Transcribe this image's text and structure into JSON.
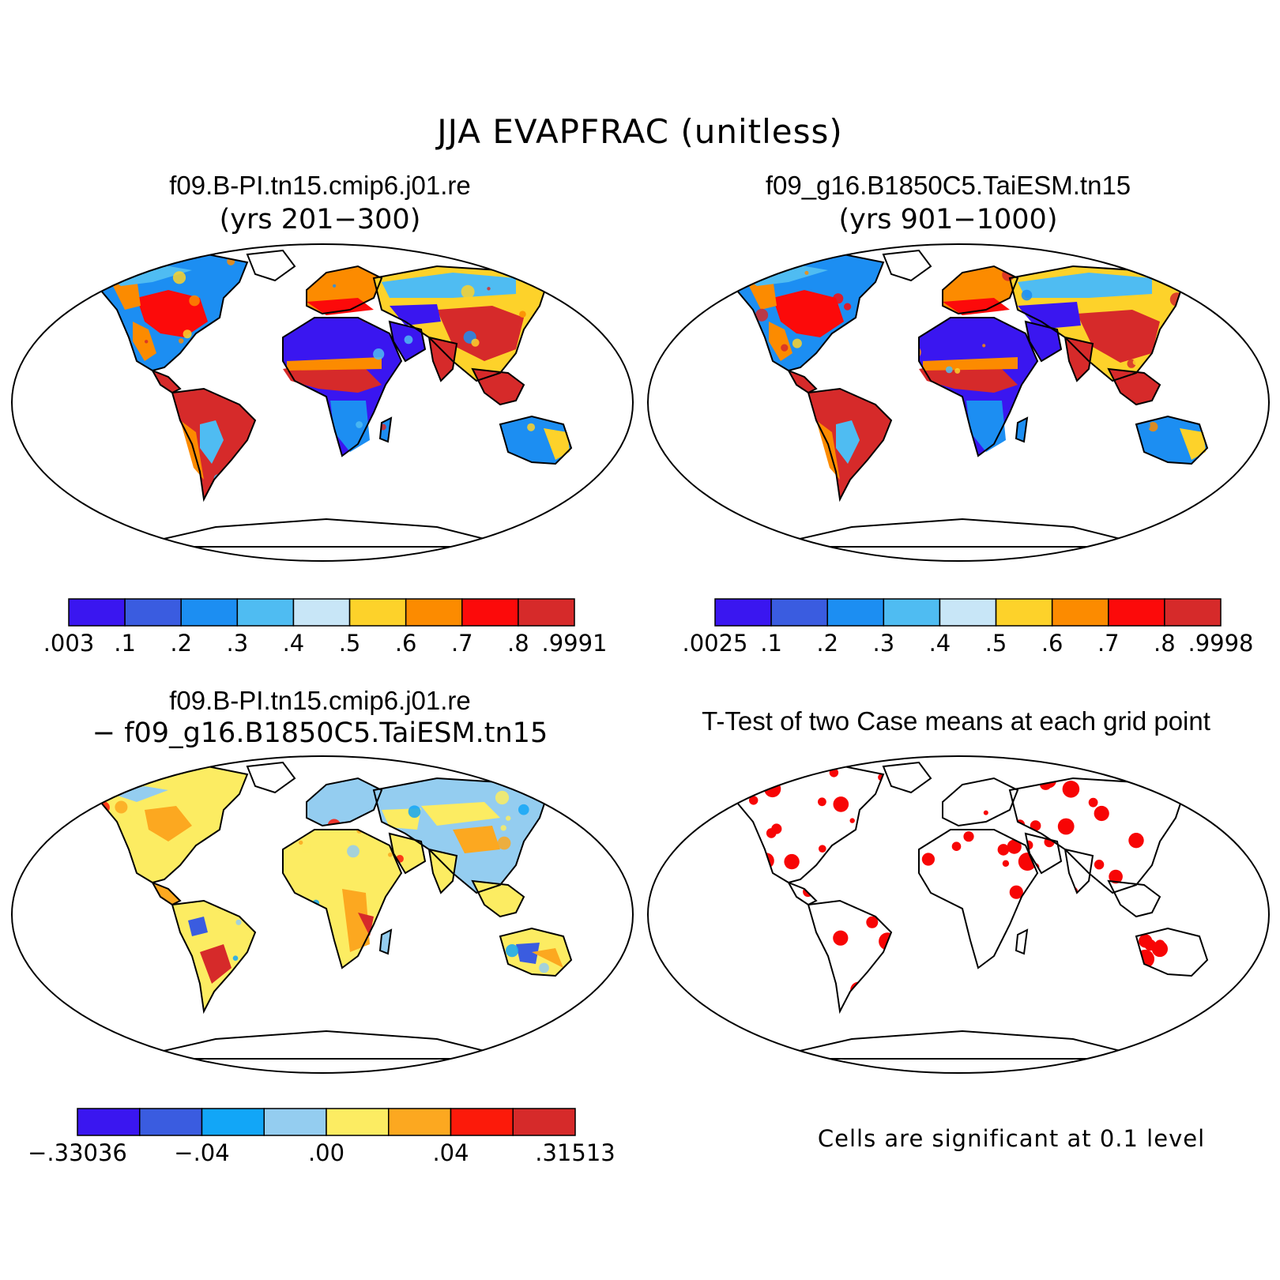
{
  "figure": {
    "title": "JJA EVAPFRAC (unitless)"
  },
  "panels": [
    {
      "id": "case1",
      "title": "f09.B-PI.tn15.cmip6.j01.re",
      "subtitle": "(yrs 201−300)",
      "colorbar": {
        "colors": [
          "#3a16f0",
          "#3a5ce0",
          "#1c8ef2",
          "#4fbcf2",
          "#c8e6f7",
          "#fdd22a",
          "#fc8b00",
          "#fc0a0a",
          "#d62a2a"
        ],
        "tick_labels": [
          ".003",
          ".1",
          ".2",
          ".3",
          ".4",
          ".5",
          ".6",
          ".7",
          ".8",
          ".9991"
        ]
      }
    },
    {
      "id": "case2",
      "title": "f09_g16.B1850C5.TaiESM.tn15",
      "subtitle": "(yrs 901−1000)",
      "colorbar": {
        "colors": [
          "#3a16f0",
          "#3a5ce0",
          "#1c8ef2",
          "#4fbcf2",
          "#c8e6f7",
          "#fdd22a",
          "#fc8b00",
          "#fc0a0a",
          "#d62a2a"
        ],
        "tick_labels": [
          ".0025",
          ".1",
          ".2",
          ".3",
          ".4",
          ".5",
          ".6",
          ".7",
          ".8",
          ".9998"
        ]
      }
    },
    {
      "id": "diff",
      "title": "f09.B-PI.tn15.cmip6.j01.re",
      "subtitle": "− f09_g16.B1850C5.TaiESM.tn15",
      "colorbar": {
        "colors": [
          "#3a16f0",
          "#3a5ce0",
          "#12a6f7",
          "#94cdf0",
          "#fcec62",
          "#fca820",
          "#fc1a0a",
          "#d62a2a"
        ],
        "tick_labels": [
          "−.33036",
          "−.04",
          ".00",
          ".04",
          ".31513"
        ]
      }
    },
    {
      "id": "ttest",
      "title": "T-Test of two Case means at each grid point",
      "note": "Cells are significant at 0.1 level",
      "significant_color": "#f70505"
    }
  ]
}
